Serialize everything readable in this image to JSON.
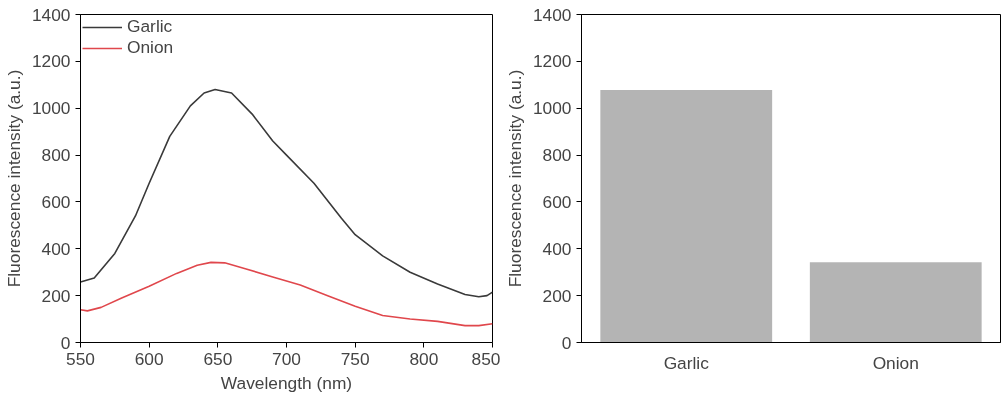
{
  "chart_data": [
    {
      "type": "line",
      "xlabel": "Wavelength (nm)",
      "ylabel": "Fluorescence intensity (a.u.)",
      "xlim": [
        550,
        850
      ],
      "xticks": [
        550,
        600,
        650,
        700,
        750,
        800,
        850
      ],
      "ylim": [
        0,
        1400
      ],
      "yticks": [
        0,
        200,
        400,
        600,
        800,
        1000,
        1200,
        1400
      ],
      "grid": false,
      "legend": "top left",
      "line_style": "solid",
      "series": [
        {
          "name": "Garlic",
          "color": "#3a3a3a",
          "x": [
            550,
            560,
            575,
            590,
            600,
            615,
            630,
            640,
            648,
            660,
            675,
            690,
            700,
            720,
            740,
            750,
            770,
            790,
            810,
            830,
            840,
            846,
            850
          ],
          "values": [
            258,
            275,
            380,
            540,
            680,
            880,
            1010,
            1065,
            1080,
            1065,
            975,
            860,
            800,
            680,
            530,
            460,
            370,
            300,
            250,
            205,
            195,
            200,
            215
          ]
        },
        {
          "name": "Onion",
          "color": "#e0474c",
          "x": [
            550,
            555,
            565,
            580,
            600,
            620,
            635,
            645,
            655,
            670,
            690,
            710,
            730,
            750,
            770,
            790,
            810,
            830,
            840,
            850
          ],
          "values": [
            140,
            135,
            150,
            190,
            240,
            295,
            330,
            342,
            340,
            315,
            280,
            245,
            200,
            155,
            115,
            100,
            90,
            72,
            72,
            80
          ]
        }
      ]
    },
    {
      "type": "bar",
      "ylabel": "Fluorescence intensity (a.u.)",
      "categories": [
        "Garlic",
        "Onion"
      ],
      "values": [
        1078,
        342
      ],
      "color": "#b4b4b4",
      "ylim": [
        0,
        1400
      ],
      "yticks": [
        0,
        200,
        400,
        600,
        800,
        1000,
        1200,
        1400
      ],
      "grid": false
    }
  ]
}
